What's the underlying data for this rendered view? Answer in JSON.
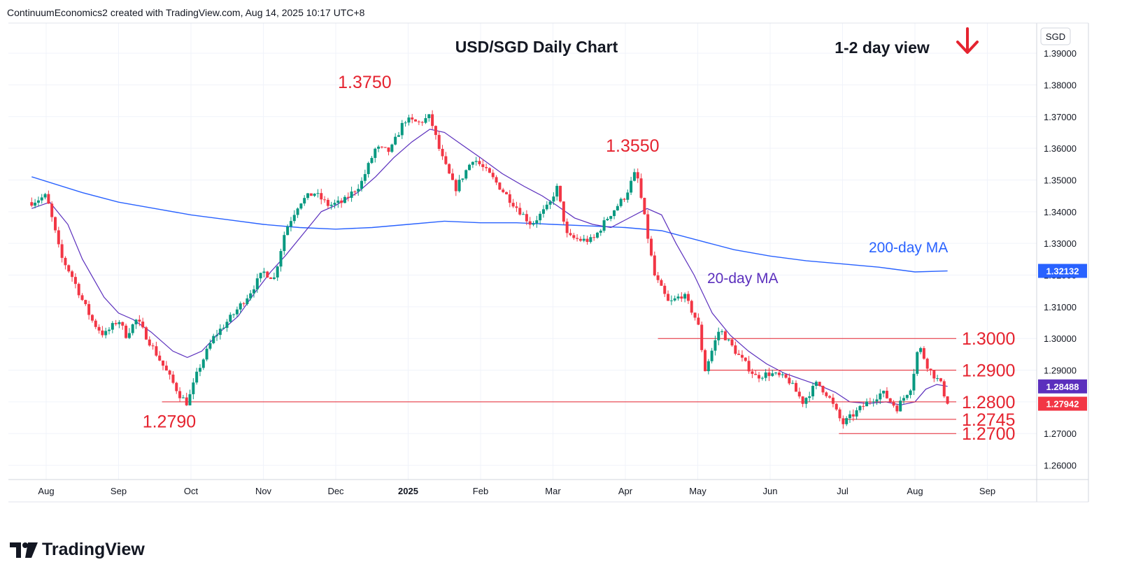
{
  "header": {
    "credit": "ContinuumEconomics2 created with TradingView.com, Aug 14, 2025 10:17 UTC+8"
  },
  "brand": {
    "name": "TradingView"
  },
  "colors": {
    "up": "#089981",
    "down": "#f23645",
    "ma20": "#5b2fbd",
    "ma200": "#2962ff",
    "annotation": "#e5232f",
    "arrow": "#e5232f"
  },
  "chart_data": {
    "type": "candlestick",
    "title": "USD/SGD Daily Chart",
    "view_label": "1-2 day view",
    "view_direction": "down",
    "currency": "SGD",
    "ylim": [
      1.2555,
      1.3995
    ],
    "y_ticks": [
      "1.39000",
      "1.38000",
      "1.37000",
      "1.36000",
      "1.35000",
      "1.34000",
      "1.33000",
      "1.32000",
      "1.31000",
      "1.30000",
      "1.29000",
      "1.28000",
      "1.27000",
      "1.26000"
    ],
    "x_ticks": [
      {
        "label": "Aug",
        "month": 0,
        "bold": false
      },
      {
        "label": "Sep",
        "month": 1,
        "bold": false
      },
      {
        "label": "Oct",
        "month": 2,
        "bold": false
      },
      {
        "label": "Nov",
        "month": 3,
        "bold": false
      },
      {
        "label": "Dec",
        "month": 4,
        "bold": false
      },
      {
        "label": "2025",
        "month": 5,
        "bold": true
      },
      {
        "label": "Feb",
        "month": 6,
        "bold": false
      },
      {
        "label": "Mar",
        "month": 7,
        "bold": false
      },
      {
        "label": "Apr",
        "month": 8,
        "bold": false
      },
      {
        "label": "May",
        "month": 9,
        "bold": false
      },
      {
        "label": "Jun",
        "month": 10,
        "bold": false
      },
      {
        "label": "Jul",
        "month": 11,
        "bold": false
      },
      {
        "label": "Aug",
        "month": 12,
        "bold": false
      },
      {
        "label": "Sep",
        "month": 13,
        "bold": false
      }
    ],
    "anchors": [
      [
        -0.2,
        1.343
      ],
      [
        0.0,
        1.345
      ],
      [
        0.1,
        1.336
      ],
      [
        0.2,
        1.326
      ],
      [
        0.35,
        1.32
      ],
      [
        0.5,
        1.312
      ],
      [
        0.65,
        1.305
      ],
      [
        0.8,
        1.301
      ],
      [
        1.0,
        1.306
      ],
      [
        1.1,
        1.301
      ],
      [
        1.25,
        1.306
      ],
      [
        1.4,
        1.3
      ],
      [
        1.6,
        1.292
      ],
      [
        1.85,
        1.282
      ],
      [
        1.95,
        1.2795
      ],
      [
        2.1,
        1.29
      ],
      [
        2.3,
        1.3
      ],
      [
        2.6,
        1.308
      ],
      [
        2.8,
        1.314
      ],
      [
        3.0,
        1.321
      ],
      [
        3.15,
        1.319
      ],
      [
        3.3,
        1.334
      ],
      [
        3.5,
        1.343
      ],
      [
        3.7,
        1.346
      ],
      [
        3.9,
        1.342
      ],
      [
        4.1,
        1.343
      ],
      [
        4.35,
        1.349
      ],
      [
        4.55,
        1.36
      ],
      [
        4.75,
        1.359
      ],
      [
        4.95,
        1.369
      ],
      [
        5.15,
        1.368
      ],
      [
        5.3,
        1.37
      ],
      [
        5.45,
        1.358
      ],
      [
        5.65,
        1.347
      ],
      [
        5.9,
        1.357
      ],
      [
        6.15,
        1.351
      ],
      [
        6.4,
        1.344
      ],
      [
        6.7,
        1.336
      ],
      [
        6.95,
        1.342
      ],
      [
        7.05,
        1.348
      ],
      [
        7.2,
        1.332
      ],
      [
        7.4,
        1.331
      ],
      [
        7.55,
        1.331
      ],
      [
        7.75,
        1.338
      ],
      [
        8.0,
        1.345
      ],
      [
        8.15,
        1.353
      ],
      [
        8.25,
        1.34
      ],
      [
        8.4,
        1.32
      ],
      [
        8.6,
        1.311
      ],
      [
        8.8,
        1.314
      ],
      [
        9.0,
        1.305
      ],
      [
        9.1,
        1.29
      ],
      [
        9.3,
        1.303
      ],
      [
        9.55,
        1.295
      ],
      [
        9.8,
        1.288
      ],
      [
        10.0,
        1.289
      ],
      [
        10.25,
        1.287
      ],
      [
        10.45,
        1.28
      ],
      [
        10.65,
        1.286
      ],
      [
        10.8,
        1.282
      ],
      [
        11.0,
        1.273
      ],
      [
        11.15,
        1.276
      ],
      [
        11.35,
        1.28
      ],
      [
        11.55,
        1.283
      ],
      [
        11.75,
        1.278
      ],
      [
        11.95,
        1.285
      ],
      [
        12.05,
        1.298
      ],
      [
        12.2,
        1.29
      ],
      [
        12.35,
        1.286
      ],
      [
        12.45,
        1.2794
      ]
    ],
    "annotations": [
      {
        "label": "1.3750",
        "month": 4.4,
        "value": 1.375
      },
      {
        "label": "1.3550",
        "month": 8.1,
        "value": 1.355
      },
      {
        "label": "1.2790",
        "month": 1.7,
        "value": 1.279
      }
    ],
    "levels": [
      {
        "label": "1.3000",
        "value": 1.3,
        "from_month": 8.45
      },
      {
        "label": "1.2900",
        "value": 1.29,
        "from_month": 9.1
      },
      {
        "label": "1.2800",
        "value": 1.28,
        "from_month": 1.6
      },
      {
        "label": "1.2745",
        "value": 1.2745,
        "from_month": 11.0
      },
      {
        "label": "1.2700",
        "value": 1.27,
        "from_month": 10.95
      }
    ],
    "ma20": {
      "name": "20-day MA",
      "points": [
        [
          -0.2,
          1.341
        ],
        [
          0.05,
          1.343
        ],
        [
          0.3,
          1.336
        ],
        [
          0.5,
          1.325
        ],
        [
          0.8,
          1.313
        ],
        [
          1.0,
          1.308
        ],
        [
          1.2,
          1.306
        ],
        [
          1.45,
          1.302
        ],
        [
          1.75,
          1.296
        ],
        [
          1.95,
          1.294
        ],
        [
          2.15,
          1.296
        ],
        [
          2.4,
          1.302
        ],
        [
          2.65,
          1.307
        ],
        [
          2.9,
          1.315
        ],
        [
          3.1,
          1.321
        ],
        [
          3.3,
          1.326
        ],
        [
          3.55,
          1.333
        ],
        [
          3.8,
          1.34
        ],
        [
          4.0,
          1.342
        ],
        [
          4.3,
          1.346
        ],
        [
          4.55,
          1.351
        ],
        [
          4.8,
          1.357
        ],
        [
          5.05,
          1.362
        ],
        [
          5.3,
          1.366
        ],
        [
          5.5,
          1.365
        ],
        [
          5.75,
          1.361
        ],
        [
          6.0,
          1.357
        ],
        [
          6.3,
          1.352
        ],
        [
          6.6,
          1.348
        ],
        [
          6.85,
          1.345
        ],
        [
          7.05,
          1.342
        ],
        [
          7.3,
          1.338
        ],
        [
          7.55,
          1.336
        ],
        [
          7.8,
          1.335
        ],
        [
          8.05,
          1.338
        ],
        [
          8.3,
          1.341
        ],
        [
          8.5,
          1.339
        ],
        [
          8.7,
          1.33
        ],
        [
          8.95,
          1.32
        ],
        [
          9.2,
          1.308
        ],
        [
          9.45,
          1.301
        ],
        [
          9.7,
          1.296
        ],
        [
          9.95,
          1.292
        ],
        [
          10.2,
          1.289
        ],
        [
          10.45,
          1.287
        ],
        [
          10.7,
          1.285
        ],
        [
          10.9,
          1.283
        ],
        [
          11.1,
          1.28
        ],
        [
          11.35,
          1.2795
        ],
        [
          11.6,
          1.28
        ],
        [
          11.8,
          1.279
        ],
        [
          12.0,
          1.28
        ],
        [
          12.15,
          1.284
        ],
        [
          12.3,
          1.2855
        ],
        [
          12.45,
          1.2849
        ]
      ]
    },
    "ma200": {
      "name": "200-day MA",
      "points": [
        [
          -0.2,
          1.351
        ],
        [
          0.5,
          1.346
        ],
        [
          1.0,
          1.343
        ],
        [
          1.5,
          1.341
        ],
        [
          2.0,
          1.339
        ],
        [
          2.5,
          1.3375
        ],
        [
          3.0,
          1.336
        ],
        [
          3.5,
          1.335
        ],
        [
          4.0,
          1.3345
        ],
        [
          4.5,
          1.335
        ],
        [
          5.0,
          1.336
        ],
        [
          5.5,
          1.337
        ],
        [
          6.0,
          1.3365
        ],
        [
          6.5,
          1.3365
        ],
        [
          7.0,
          1.336
        ],
        [
          7.5,
          1.3355
        ],
        [
          8.0,
          1.335
        ],
        [
          8.5,
          1.334
        ],
        [
          9.0,
          1.331
        ],
        [
          9.5,
          1.328
        ],
        [
          10.0,
          1.326
        ],
        [
          10.5,
          1.3245
        ],
        [
          11.0,
          1.3235
        ],
        [
          11.5,
          1.3225
        ],
        [
          12.0,
          1.321
        ],
        [
          12.45,
          1.3213
        ]
      ]
    },
    "price_badges": [
      {
        "label": "1.32132",
        "value": 1.32132,
        "color": "#2962ff"
      },
      {
        "label": "1.28488",
        "value": 1.28488,
        "color": "#5b2fbd"
      },
      {
        "label": "1.27942",
        "value": 1.27942,
        "color": "#f23645"
      }
    ]
  }
}
